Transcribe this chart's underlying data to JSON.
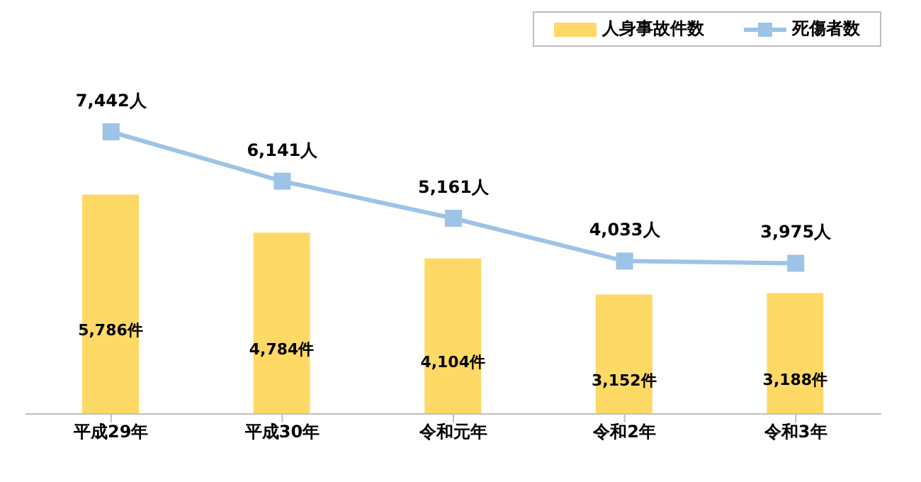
{
  "chart_data": {
    "type": "bar",
    "categories": [
      "平成29年",
      "平成30年",
      "令和元年",
      "令和2年",
      "令和3年"
    ],
    "series": [
      {
        "name": "人身事故件数",
        "color": "#ffd966",
        "values": [
          5786,
          4784,
          4104,
          3152,
          3188
        ],
        "value_labels": [
          "5,786件",
          "4,784件",
          "4,104件",
          "3,152件",
          "3,188件"
        ]
      },
      {
        "name": "死傷者数",
        "type": "line",
        "color": "#9dc3e6",
        "values": [
          7442,
          6141,
          5161,
          4033,
          3975
        ],
        "value_labels": [
          "7,442人",
          "6,141人",
          "5,161人",
          "4,033人",
          "3,975人"
        ]
      }
    ],
    "marker": "square",
    "legend": "top right",
    "grid": false
  }
}
